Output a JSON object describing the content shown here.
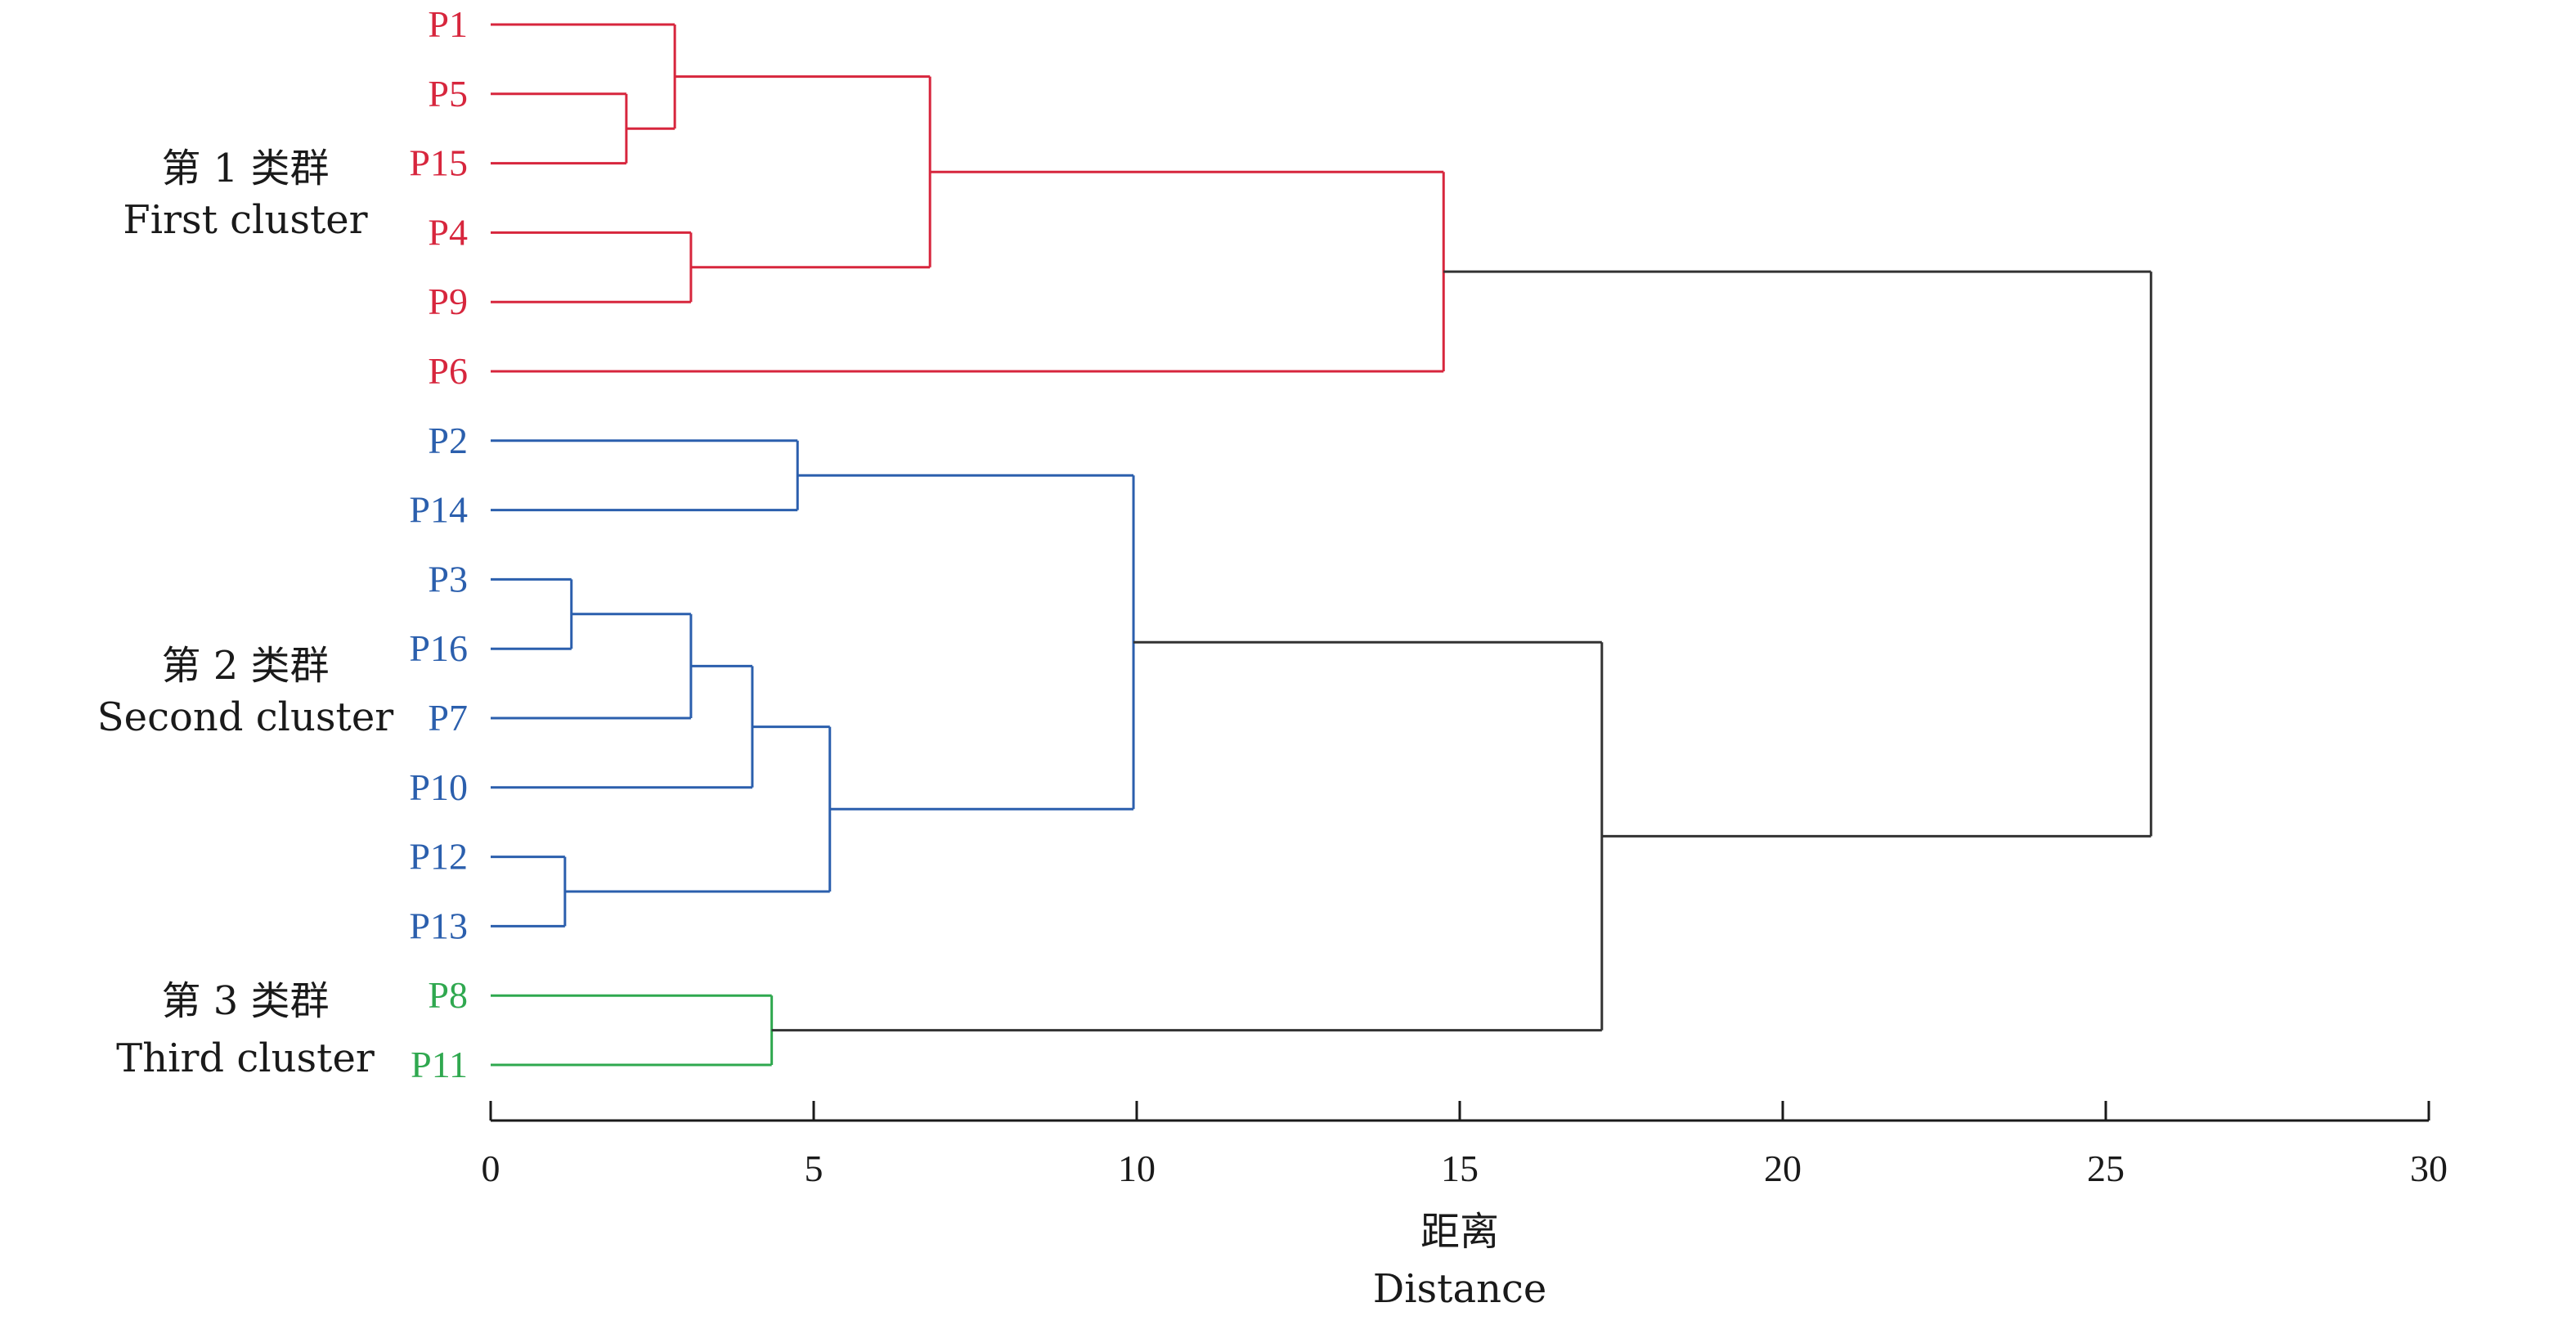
{
  "chart_data": {
    "type": "dendrogram",
    "xlabel_cn": "距离",
    "xlabel_en": "Distance",
    "xlim": [
      0,
      30
    ],
    "xticks": [
      0,
      5,
      10,
      15,
      20,
      25,
      30
    ],
    "grid": false,
    "leaves": [
      {
        "id": "P1",
        "cluster": 1
      },
      {
        "id": "P5",
        "cluster": 1
      },
      {
        "id": "P15",
        "cluster": 1
      },
      {
        "id": "P4",
        "cluster": 1
      },
      {
        "id": "P9",
        "cluster": 1
      },
      {
        "id": "P6",
        "cluster": 1
      },
      {
        "id": "P2",
        "cluster": 2
      },
      {
        "id": "P14",
        "cluster": 2
      },
      {
        "id": "P3",
        "cluster": 2
      },
      {
        "id": "P16",
        "cluster": 2
      },
      {
        "id": "P7",
        "cluster": 2
      },
      {
        "id": "P10",
        "cluster": 2
      },
      {
        "id": "P12",
        "cluster": 2
      },
      {
        "id": "P13",
        "cluster": 2
      },
      {
        "id": "P8",
        "cluster": 3
      },
      {
        "id": "P11",
        "cluster": 3
      }
    ],
    "merges": [
      {
        "a": "P5",
        "b": "P15",
        "height": 2.1,
        "cluster": 1
      },
      {
        "a": "P1",
        "b": 0,
        "height": 2.85,
        "cluster": 1
      },
      {
        "a": "P4",
        "b": "P9",
        "height": 3.1,
        "cluster": 1
      },
      {
        "a": 1,
        "b": 2,
        "height": 6.8,
        "cluster": 1
      },
      {
        "a": 3,
        "b": "P6",
        "height": 14.75,
        "cluster": 1
      },
      {
        "a": "P2",
        "b": "P14",
        "height": 4.75,
        "cluster": 2
      },
      {
        "a": "P3",
        "b": "P16",
        "height": 1.25,
        "cluster": 2
      },
      {
        "a": 6,
        "b": "P7",
        "height": 3.1,
        "cluster": 2
      },
      {
        "a": 7,
        "b": "P10",
        "height": 4.05,
        "cluster": 2
      },
      {
        "a": "P12",
        "b": "P13",
        "height": 1.15,
        "cluster": 2
      },
      {
        "a": 8,
        "b": 9,
        "height": 5.25,
        "cluster": 2
      },
      {
        "a": 5,
        "b": 10,
        "height": 9.95,
        "cluster": 2
      },
      {
        "a": "P8",
        "b": "P11",
        "height": 4.35,
        "cluster": 3
      },
      {
        "a": 11,
        "b": 12,
        "height": 17.2,
        "cluster": 0
      },
      {
        "a": 4,
        "b": 13,
        "height": 25.7,
        "cluster": 0
      }
    ],
    "clusters": [
      {
        "id": 1,
        "label_cn": "第 1 类群",
        "label_en": "First cluster",
        "color": "#d7263d"
      },
      {
        "id": 2,
        "label_cn": "第 2 类群",
        "label_en": "Second cluster",
        "color": "#2b5fad"
      },
      {
        "id": 3,
        "label_cn": "第 3 类群",
        "label_en": "Third cluster",
        "color": "#2fa84f"
      }
    ],
    "root_color": "#333333"
  }
}
